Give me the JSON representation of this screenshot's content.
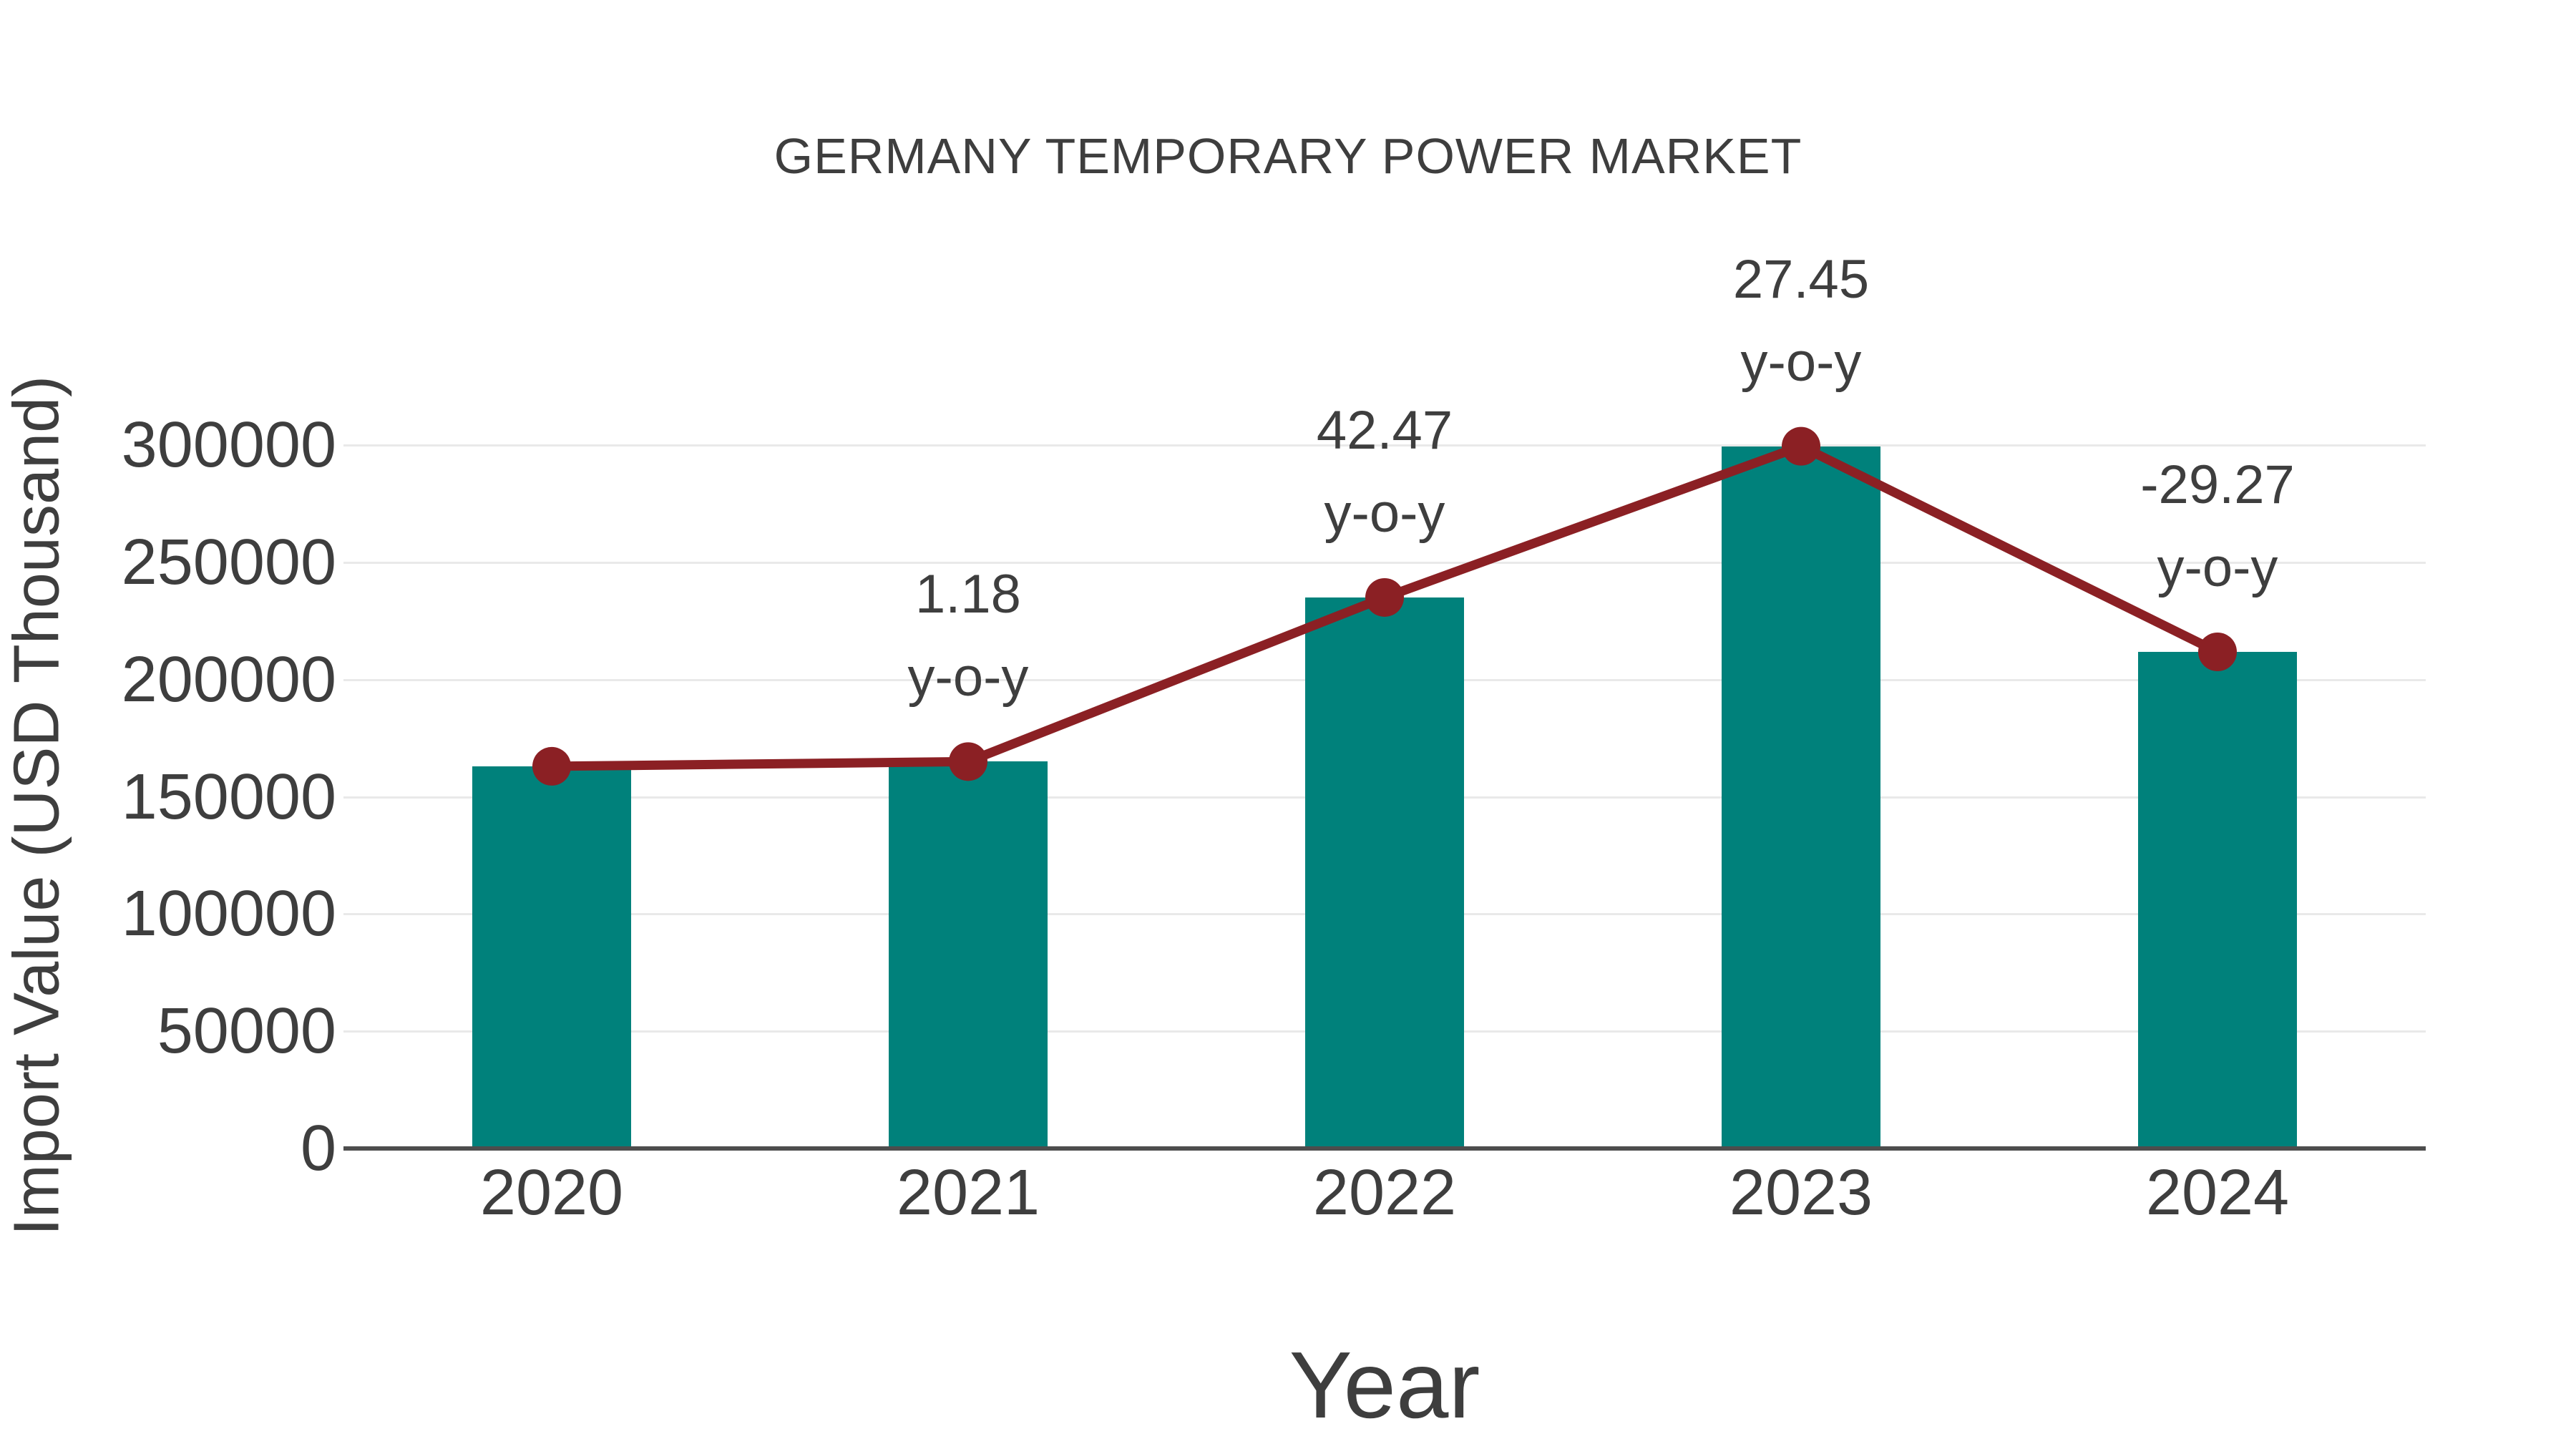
{
  "chart_data": {
    "type": "bar",
    "title": "GERMANY TEMPORARY POWER MARKET",
    "xlabel": "Year",
    "ylabel": "Import Value (USD Thousand)",
    "categories": [
      "2020",
      "2021",
      "2022",
      "2023",
      "2024"
    ],
    "series": [
      {
        "name": "import-value-bars",
        "type": "bar",
        "values": [
          163000,
          165000,
          235000,
          299500,
          211800
        ]
      },
      {
        "name": "import-value-trend-line",
        "type": "line",
        "values": [
          163000,
          165000,
          235000,
          299500,
          211800
        ]
      }
    ],
    "annotations": [
      {
        "category": "2021",
        "line1": "1.18",
        "line2": "y-o-y"
      },
      {
        "category": "2022",
        "line1": "42.47",
        "line2": "y-o-y"
      },
      {
        "category": "2023",
        "line1": "27.45",
        "line2": "y-o-y"
      },
      {
        "category": "2024",
        "line1": "-29.27",
        "line2": "y-o-y"
      }
    ],
    "ylim": [
      0,
      300000
    ],
    "yticks": [
      0,
      50000,
      100000,
      150000,
      200000,
      250000,
      300000
    ],
    "grid": true,
    "legend_position": "none",
    "colors": {
      "bar": "#00817b",
      "line": "#8b2024",
      "marker": "#8b2024",
      "text": "#3e3e3e",
      "grid": "#e9e9e9",
      "axis": "#4d4d4d"
    }
  }
}
